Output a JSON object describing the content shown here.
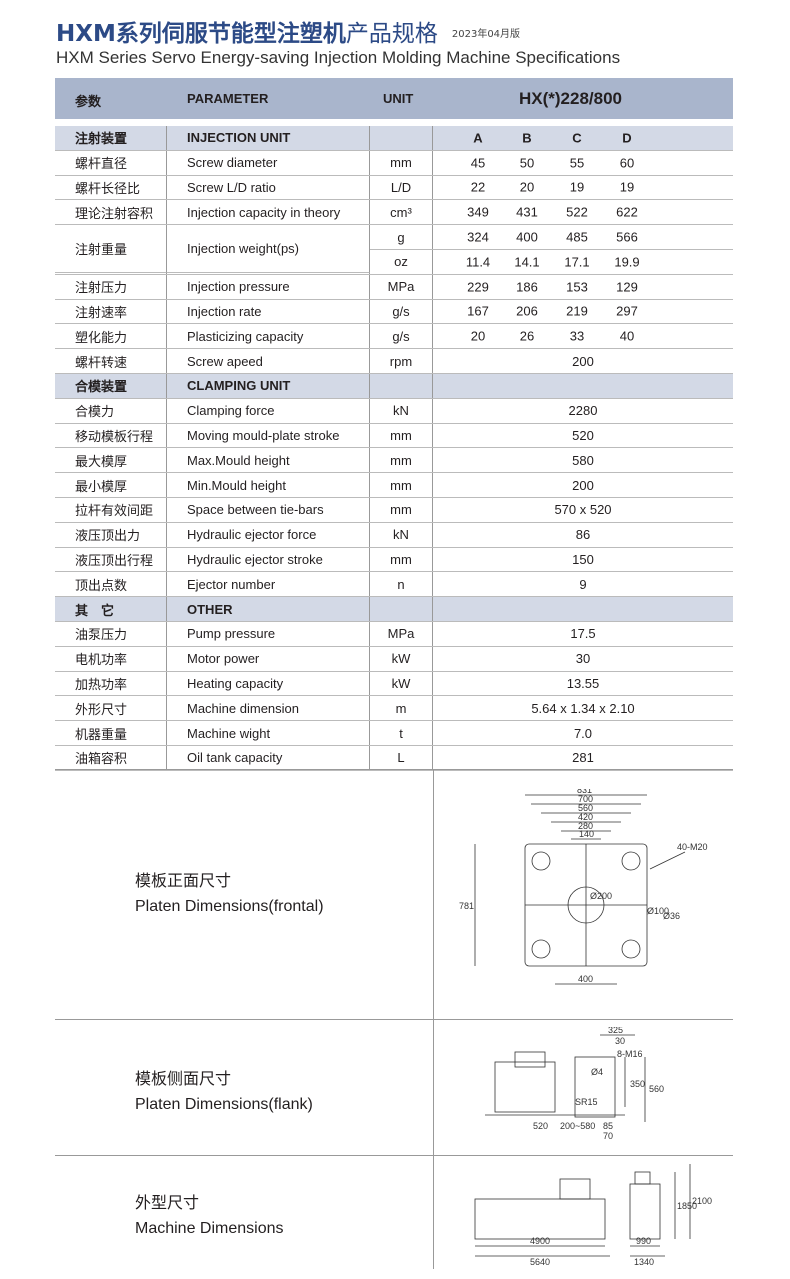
{
  "title": {
    "bold": "HXM系列伺服节能型注塑机",
    "light": "产品规格",
    "edition": "2023年04月版",
    "subtitle": "HXM Series Servo Energy-saving Injection Molding Machine Specifications"
  },
  "header": {
    "col_cn": "参数",
    "col_en": "PARAMETER",
    "col_unit": "UNIT",
    "model": "HX(*)228/800"
  },
  "rows": [
    {
      "type": "section",
      "cn": "注射装置",
      "en": "INJECTION UNIT",
      "unit": "",
      "values": [
        "A",
        "B",
        "C",
        "D"
      ]
    },
    {
      "cn": "螺杆直径",
      "en": "Screw diameter",
      "unit": "mm",
      "values": [
        "45",
        "50",
        "55",
        "60"
      ]
    },
    {
      "cn": "螺杆长径比",
      "en": "Screw L/D ratio",
      "unit": "L/D",
      "values": [
        "22",
        "20",
        "19",
        "19"
      ]
    },
    {
      "cn": "理论注射容积",
      "en": "Injection capacity in theory",
      "unit": "cm³",
      "values": [
        "349",
        "431",
        "522",
        "622"
      ]
    },
    {
      "cn": "注射重量",
      "en": "Injection weight(ps)",
      "unit": "g",
      "values": [
        "324",
        "400",
        "485",
        "566"
      ],
      "span": true
    },
    {
      "cn": "",
      "en": "",
      "unit": "oz",
      "values": [
        "11.4",
        "14.1",
        "17.1",
        "19.9"
      ],
      "cont": true
    },
    {
      "cn": "注射压力",
      "en": "Injection pressure",
      "unit": "MPa",
      "values": [
        "229",
        "186",
        "153",
        "129"
      ]
    },
    {
      "cn": "注射速率",
      "en": "Injection rate",
      "unit": "g/s",
      "values": [
        "167",
        "206",
        "219",
        "297"
      ]
    },
    {
      "cn": "塑化能力",
      "en": "Plasticizing capacity",
      "unit": "g/s",
      "values": [
        "20",
        "26",
        "33",
        "40"
      ]
    },
    {
      "cn": "螺杆转速",
      "en": "Screw apeed",
      "unit": "rpm",
      "value": "200"
    },
    {
      "type": "section",
      "cn": "合模装置",
      "en": "CLAMPING UNIT",
      "unit": ""
    },
    {
      "cn": "合模力",
      "en": "Clamping force",
      "unit": "kN",
      "value": "2280"
    },
    {
      "cn": "移动模板行程",
      "en": "Moving mould-plate stroke",
      "unit": "mm",
      "value": "520"
    },
    {
      "cn": "最大模厚",
      "en": "Max.Mould height",
      "unit": "mm",
      "value": "580"
    },
    {
      "cn": "最小模厚",
      "en": "Min.Mould height",
      "unit": "mm",
      "value": "200"
    },
    {
      "cn": "拉杆有效间距",
      "en": "Space between tie-bars",
      "unit": "mm",
      "value": "570 x 520"
    },
    {
      "cn": "液压顶出力",
      "en": "Hydraulic ejector force",
      "unit": "kN",
      "value": "86"
    },
    {
      "cn": "液压顶出行程",
      "en": "Hydraulic ejector stroke",
      "unit": "mm",
      "value": "150"
    },
    {
      "cn": "顶出点数",
      "en": "Ejector number",
      "unit": "n",
      "value": "9"
    },
    {
      "type": "section",
      "cn": "其　它",
      "en": "OTHER",
      "unit": ""
    },
    {
      "cn": "油泵压力",
      "en": "Pump pressure",
      "unit": "MPa",
      "value": "17.5"
    },
    {
      "cn": "电机功率",
      "en": "Motor power",
      "unit": "kW",
      "value": "30"
    },
    {
      "cn": "加热功率",
      "en": "Heating capacity",
      "unit": "kW",
      "value": "13.55"
    },
    {
      "cn": "外形尺寸",
      "en": "Machine dimension",
      "unit": "m",
      "value": "5.64 x 1.34 x 2.10"
    },
    {
      "cn": "机器重量",
      "en": "Machine wight",
      "unit": "t",
      "value": "7.0"
    },
    {
      "cn": "油箱容积",
      "en": "Oil tank capacity",
      "unit": "L",
      "value": "281"
    }
  ],
  "drawings": {
    "frontal": {
      "cn": "模板正面尺寸",
      "en": "Platen Dimensions(frontal)",
      "dims": [
        "831",
        "700",
        "560",
        "420",
        "280",
        "140",
        "781",
        "400",
        "40-M20",
        "Ø200",
        "Ø36",
        "Ø100"
      ]
    },
    "flank": {
      "cn": "模板侧面尺寸",
      "en": "Platen Dimensions(flank)",
      "dims": [
        "325",
        "30",
        "8-M16",
        "350",
        "560",
        "SR15",
        "520",
        "200~580",
        "85",
        "70",
        "Ø4"
      ]
    },
    "machine": {
      "cn": "外型尺寸",
      "en": "Machine Dimensions",
      "dims": [
        "4900",
        "5640",
        "990",
        "1340",
        "1850",
        "2100"
      ]
    }
  }
}
